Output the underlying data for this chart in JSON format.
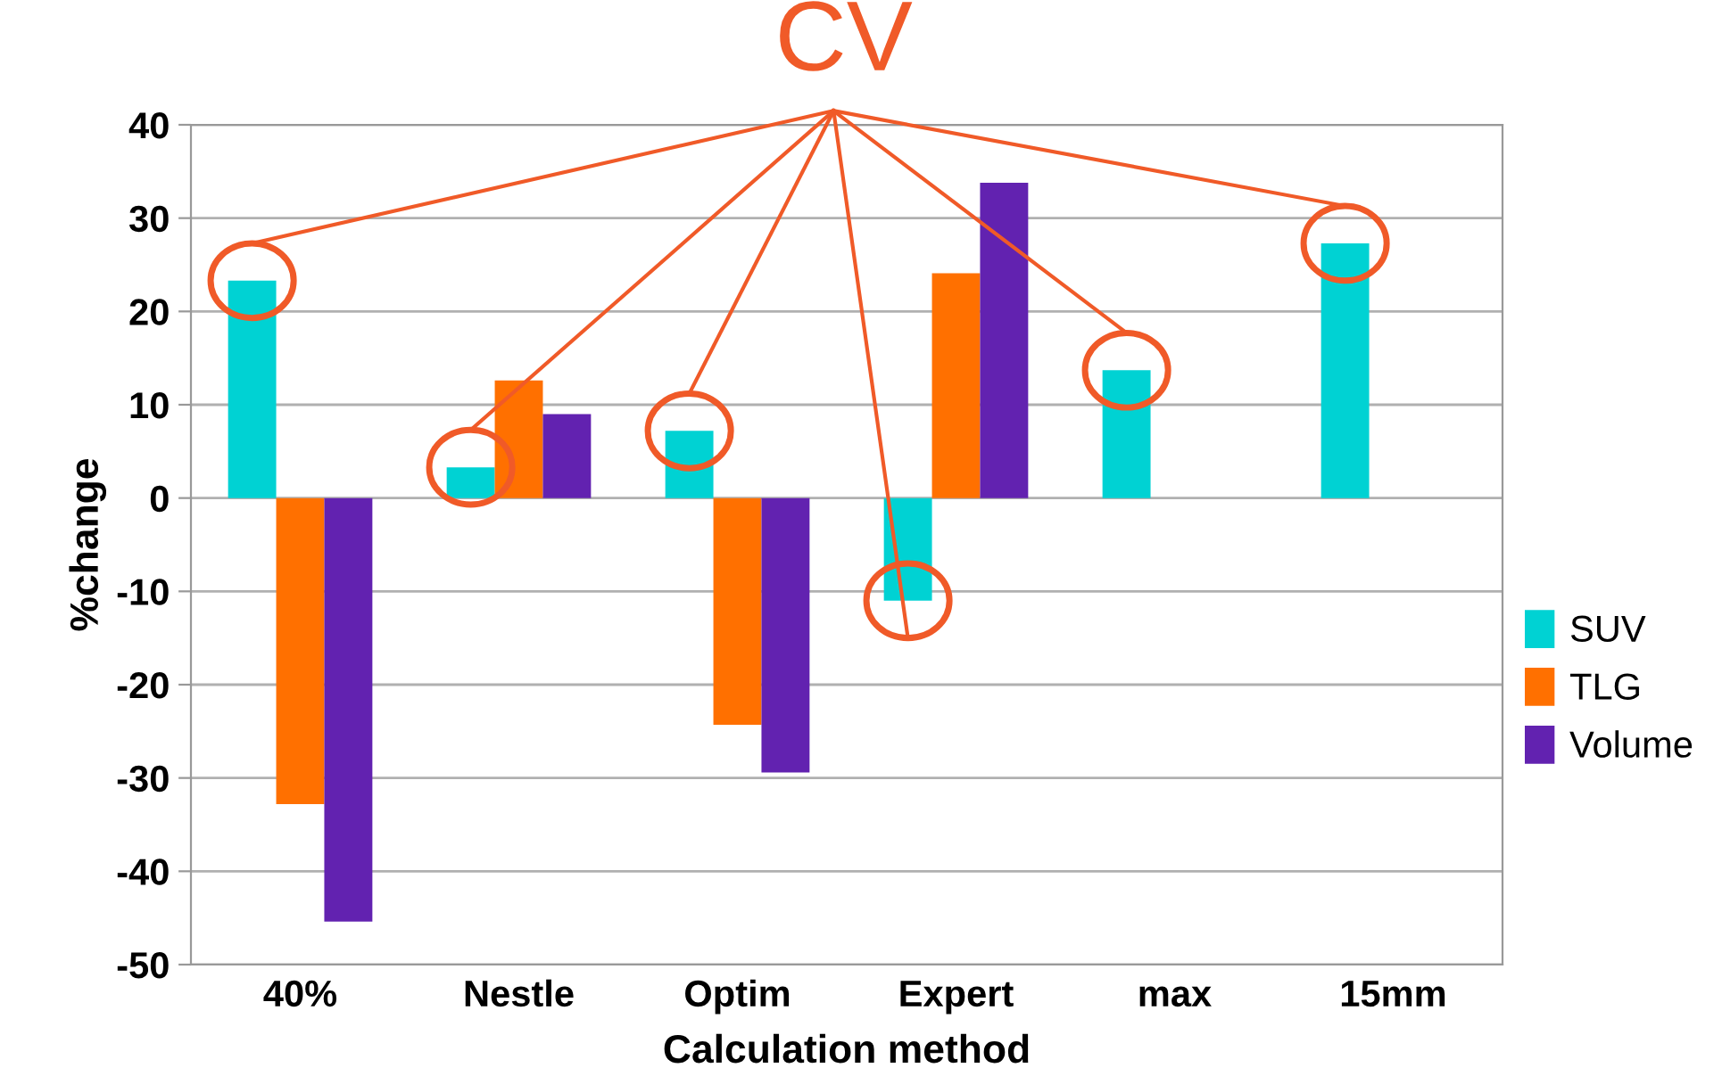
{
  "chart_data": {
    "type": "bar",
    "xlabel": "Calculation method",
    "ylabel": "%change",
    "categories": [
      "40%",
      "Nestle",
      "Optim",
      "Expert",
      "max",
      "15mm"
    ],
    "series": [
      {
        "name": "SUV",
        "color": "#00d2d3",
        "values": [
          23.3,
          3.3,
          7.2,
          -11.0,
          13.7,
          27.3
        ]
      },
      {
        "name": "TLG",
        "color": "#ff7000",
        "values": [
          -32.8,
          12.6,
          -24.3,
          24.1,
          null,
          null
        ]
      },
      {
        "name": "Volume",
        "color": "#6222b0",
        "values": [
          -45.4,
          9.0,
          -29.4,
          33.8,
          null,
          null
        ]
      }
    ],
    "ylim": [
      -50,
      40
    ],
    "yticks": [
      -50,
      -40,
      -30,
      -20,
      -10,
      0,
      10,
      20,
      30,
      40
    ],
    "grid": "y",
    "legend": "right",
    "annotations": [
      "CV"
    ]
  }
}
